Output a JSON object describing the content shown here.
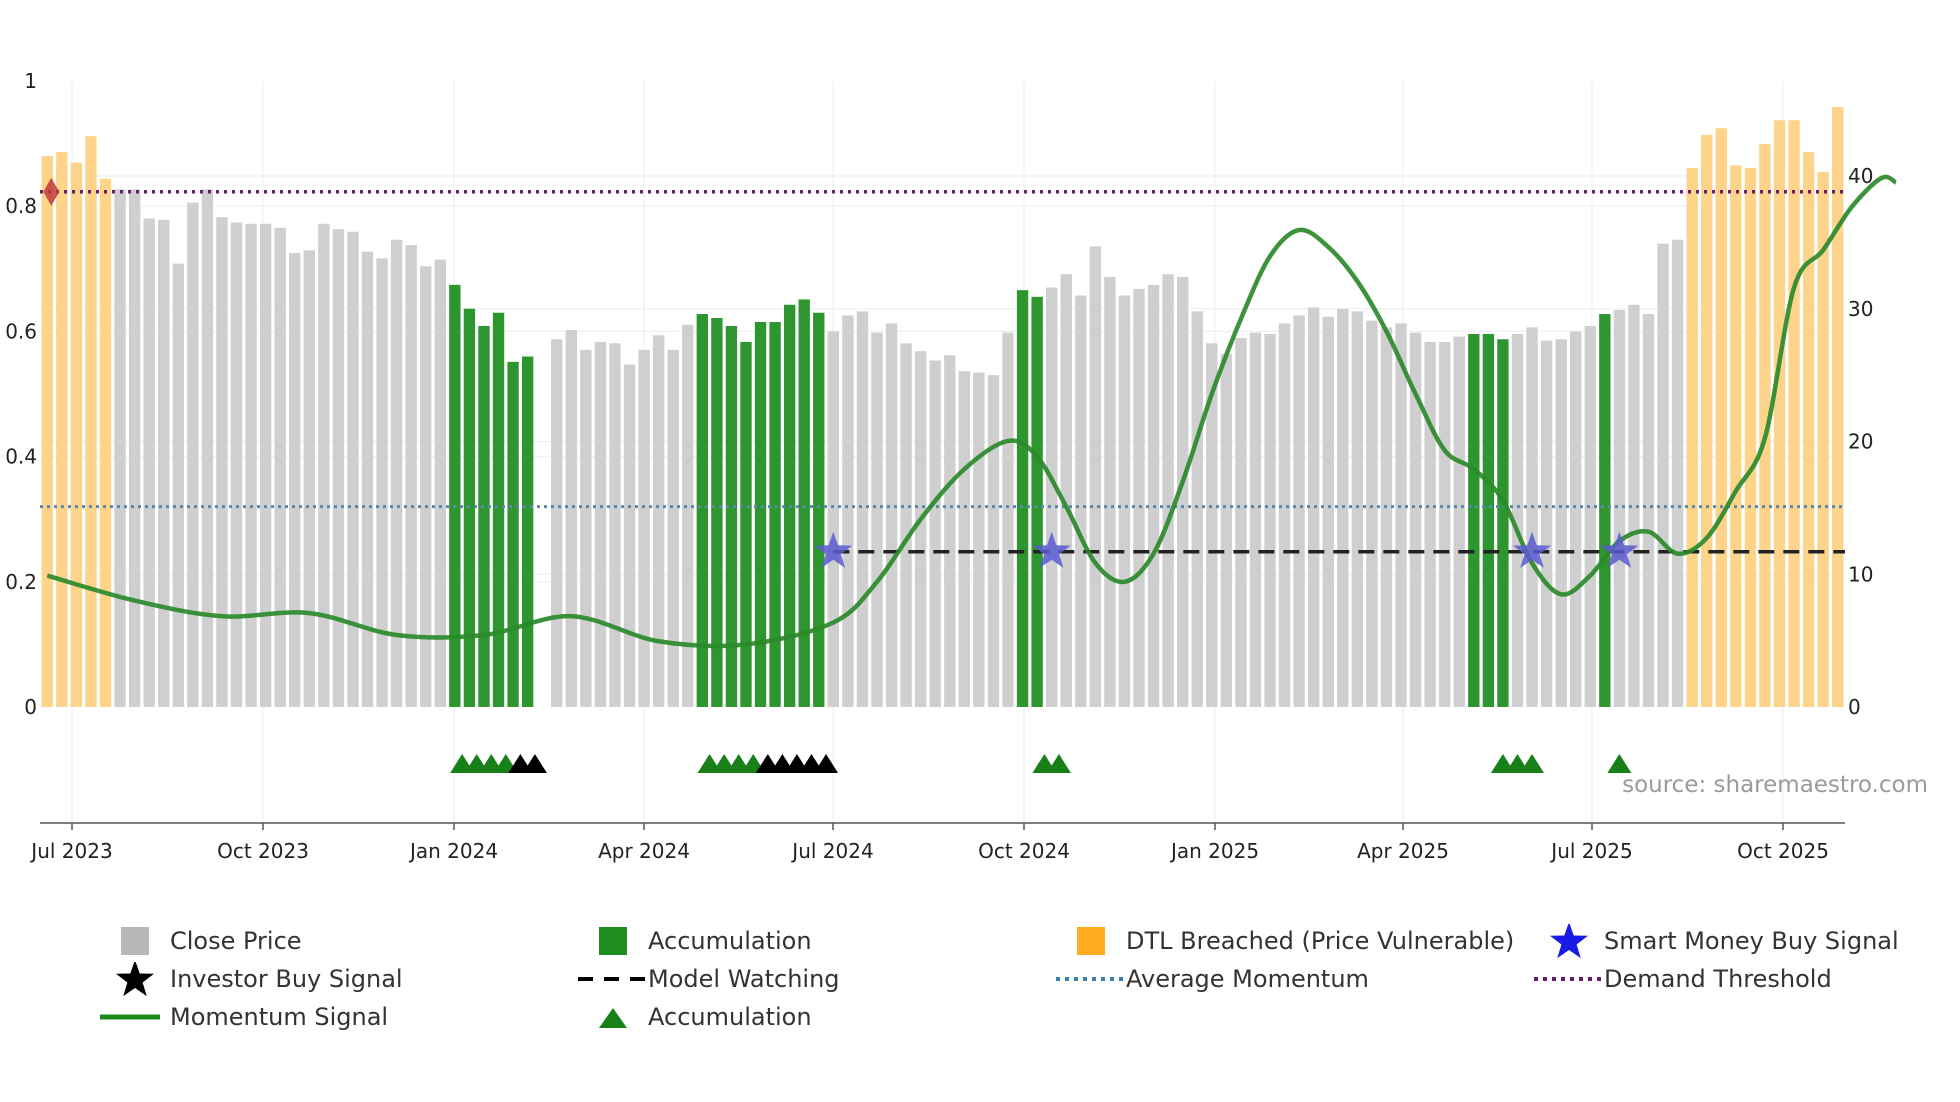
{
  "chart_data": {
    "type": "bar",
    "x_ticks": [
      "Jul 2023",
      "Oct 2023",
      "Jan 2024",
      "Apr 2024",
      "Jul 2024",
      "Oct 2024",
      "Jan 2025",
      "Apr 2025",
      "Jul 2025",
      "Oct 2025"
    ],
    "left_axis": {
      "ticks": [
        "0",
        "0.2",
        "0.4",
        "0.6",
        "0.8",
        "1"
      ],
      "ylim": [
        0,
        1
      ]
    },
    "right_axis": {
      "ticks": [
        "0",
        "10",
        "20",
        "30",
        "40"
      ],
      "ylim": [
        0,
        47.5
      ]
    },
    "close_price": [
      [
        41.5,
        "dtl"
      ],
      [
        41.8,
        "dtl"
      ],
      [
        41.0,
        "dtl"
      ],
      [
        43.0,
        "dtl"
      ],
      [
        39.8,
        "dtl"
      ],
      [
        39.0,
        "gray"
      ],
      [
        39.0,
        "gray"
      ],
      [
        36.8,
        "gray"
      ],
      [
        36.7,
        "gray"
      ],
      [
        33.4,
        "gray"
      ],
      [
        38.0,
        "gray"
      ],
      [
        39.0,
        "gray"
      ],
      [
        36.9,
        "gray"
      ],
      [
        36.5,
        "gray"
      ],
      [
        36.4,
        "gray"
      ],
      [
        36.4,
        "gray"
      ],
      [
        36.1,
        "gray"
      ],
      [
        34.2,
        "gray"
      ],
      [
        34.4,
        "gray"
      ],
      [
        36.4,
        "gray"
      ],
      [
        36.0,
        "gray"
      ],
      [
        35.8,
        "gray"
      ],
      [
        34.3,
        "gray"
      ],
      [
        33.8,
        "gray"
      ],
      [
        35.2,
        "gray"
      ],
      [
        34.8,
        "gray"
      ],
      [
        33.2,
        "gray"
      ],
      [
        33.7,
        "gray"
      ],
      [
        31.8,
        "acc"
      ],
      [
        30.0,
        "acc"
      ],
      [
        28.7,
        "acc"
      ],
      [
        29.7,
        "acc"
      ],
      [
        26.0,
        "acc"
      ],
      [
        26.4,
        "acc"
      ],
      [
        0,
        "gap"
      ],
      [
        27.7,
        "gray"
      ],
      [
        28.4,
        "gray"
      ],
      [
        26.9,
        "gray"
      ],
      [
        27.5,
        "gray"
      ],
      [
        27.4,
        "gray"
      ],
      [
        25.8,
        "gray"
      ],
      [
        26.9,
        "gray"
      ],
      [
        28.0,
        "gray"
      ],
      [
        26.9,
        "gray"
      ],
      [
        28.8,
        "gray"
      ],
      [
        29.6,
        "acc"
      ],
      [
        29.3,
        "acc"
      ],
      [
        28.7,
        "acc"
      ],
      [
        27.5,
        "acc"
      ],
      [
        29.0,
        "acc"
      ],
      [
        29.0,
        "acc"
      ],
      [
        30.3,
        "acc"
      ],
      [
        30.7,
        "acc"
      ],
      [
        29.7,
        "acc"
      ],
      [
        28.3,
        "gray"
      ],
      [
        29.5,
        "gray"
      ],
      [
        29.8,
        "gray"
      ],
      [
        28.2,
        "gray"
      ],
      [
        28.9,
        "gray"
      ],
      [
        27.4,
        "gray"
      ],
      [
        26.8,
        "gray"
      ],
      [
        26.1,
        "gray"
      ],
      [
        26.5,
        "gray"
      ],
      [
        25.3,
        "gray"
      ],
      [
        25.2,
        "gray"
      ],
      [
        25.0,
        "gray"
      ],
      [
        28.2,
        "gray"
      ],
      [
        31.4,
        "acc"
      ],
      [
        30.9,
        "acc"
      ],
      [
        31.6,
        "gray"
      ],
      [
        32.6,
        "gray"
      ],
      [
        31.0,
        "gray"
      ],
      [
        34.7,
        "gray"
      ],
      [
        32.4,
        "gray"
      ],
      [
        31.0,
        "gray"
      ],
      [
        31.5,
        "gray"
      ],
      [
        31.8,
        "gray"
      ],
      [
        32.6,
        "gray"
      ],
      [
        32.4,
        "gray"
      ],
      [
        29.8,
        "gray"
      ],
      [
        27.4,
        "gray"
      ],
      [
        26.6,
        "gray"
      ],
      [
        27.8,
        "gray"
      ],
      [
        28.2,
        "gray"
      ],
      [
        28.1,
        "gray"
      ],
      [
        28.9,
        "gray"
      ],
      [
        29.5,
        "gray"
      ],
      [
        30.1,
        "gray"
      ],
      [
        29.4,
        "gray"
      ],
      [
        30.0,
        "gray"
      ],
      [
        29.8,
        "gray"
      ],
      [
        29.1,
        "gray"
      ],
      [
        28.6,
        "gray"
      ],
      [
        28.9,
        "gray"
      ],
      [
        28.2,
        "gray"
      ],
      [
        27.5,
        "gray"
      ],
      [
        27.5,
        "gray"
      ],
      [
        27.9,
        "gray"
      ],
      [
        28.1,
        "acc"
      ],
      [
        28.1,
        "acc"
      ],
      [
        27.7,
        "acc"
      ],
      [
        28.1,
        "gray"
      ],
      [
        28.6,
        "gray"
      ],
      [
        27.6,
        "gray"
      ],
      [
        27.7,
        "gray"
      ],
      [
        28.3,
        "gray"
      ],
      [
        28.7,
        "gray"
      ],
      [
        29.6,
        "acc"
      ],
      [
        29.9,
        "gray"
      ],
      [
        30.3,
        "gray"
      ],
      [
        29.6,
        "gray"
      ],
      [
        34.9,
        "gray"
      ],
      [
        35.2,
        "gray"
      ],
      [
        40.6,
        "dtl"
      ],
      [
        43.1,
        "dtl"
      ],
      [
        43.6,
        "dtl"
      ],
      [
        40.8,
        "dtl"
      ],
      [
        40.6,
        "dtl"
      ],
      [
        42.4,
        "dtl"
      ],
      [
        44.2,
        "dtl"
      ],
      [
        44.2,
        "dtl"
      ],
      [
        41.8,
        "dtl"
      ],
      [
        40.3,
        "dtl"
      ],
      [
        45.2,
        "dtl"
      ]
    ],
    "momentum_signal": [
      [
        0,
        0.21
      ],
      [
        6,
        0.17
      ],
      [
        12,
        0.145
      ],
      [
        18,
        0.15
      ],
      [
        24,
        0.115
      ],
      [
        30,
        0.115
      ],
      [
        36,
        0.145
      ],
      [
        42,
        0.105
      ],
      [
        48,
        0.1
      ],
      [
        54,
        0.135
      ],
      [
        57,
        0.2
      ],
      [
        60,
        0.3
      ],
      [
        63,
        0.38
      ],
      [
        66,
        0.425
      ],
      [
        68,
        0.4
      ],
      [
        70,
        0.32
      ],
      [
        72,
        0.23
      ],
      [
        74,
        0.2
      ],
      [
        76,
        0.245
      ],
      [
        78,
        0.36
      ],
      [
        80,
        0.5
      ],
      [
        82,
        0.62
      ],
      [
        84,
        0.72
      ],
      [
        86,
        0.762
      ],
      [
        88,
        0.735
      ],
      [
        90,
        0.68
      ],
      [
        92,
        0.6
      ],
      [
        94,
        0.5
      ],
      [
        96,
        0.41
      ],
      [
        98,
        0.38
      ],
      [
        100,
        0.33
      ],
      [
        102,
        0.23
      ],
      [
        104,
        0.18
      ],
      [
        106,
        0.21
      ],
      [
        108,
        0.265
      ],
      [
        110,
        0.28
      ],
      [
        112,
        0.245
      ],
      [
        114,
        0.27
      ],
      [
        116,
        0.345
      ],
      [
        118,
        0.43
      ],
      [
        120,
        0.67
      ],
      [
        122,
        0.73
      ],
      [
        124,
        0.8
      ],
      [
        126,
        0.845
      ],
      [
        127,
        0.838
      ]
    ],
    "average_momentum": 0.32,
    "demand_threshold": 0.823,
    "model_watching_level": 0.248,
    "smart_money_buy_signals": [
      [
        54,
        0.248
      ],
      [
        69,
        0.248
      ],
      [
        102,
        0.248
      ],
      [
        108,
        0.248
      ]
    ],
    "accumulation_markers": [
      28.5,
      29.5,
      30.5,
      31.5,
      45.5,
      46.5,
      47.5,
      48.5,
      68.5,
      69.5,
      100,
      101,
      102,
      108
    ],
    "investor_buy_markers": [
      32.5,
      33.5,
      49.5,
      50.5,
      51.5,
      52.5,
      53.5
    ],
    "legend": [
      {
        "label": "Close Price",
        "type": "square",
        "color": "#b8b8b8"
      },
      {
        "label": "Accumulation",
        "type": "square",
        "color": "#1f8c1f"
      },
      {
        "label": "DTL Breached (Price Vulnerable)",
        "type": "square",
        "color": "#ffad1f"
      },
      {
        "label": "Smart Money Buy Signal",
        "type": "star",
        "color": "#1a1ae6"
      },
      {
        "label": "Investor Buy Signal",
        "type": "star",
        "color": "#000000"
      },
      {
        "label": "Model Watching",
        "type": "dash",
        "color": "#000000"
      },
      {
        "label": "Average Momentum",
        "type": "dot",
        "color": "#3a7fb0"
      },
      {
        "label": "Demand Threshold",
        "type": "dot",
        "color": "#6a1a6a"
      },
      {
        "label": "Momentum Signal",
        "type": "line",
        "color": "#1a8a1a"
      },
      {
        "label": "Accumulation",
        "type": "triangle",
        "color": "#178017"
      }
    ]
  },
  "colors": {
    "gray": "#cfcfcf",
    "acc": "#2e962e",
    "dtl": "#fdd489",
    "momentum": "#2b8a2b",
    "avg_momentum": "#5b88aa",
    "demand": "#6b1b6b",
    "watching": "#222222",
    "star": "#5a5ad0",
    "acc_marker": "#178017",
    "investor_marker": "#000000"
  },
  "source_text": "source: sharemaestro.com"
}
